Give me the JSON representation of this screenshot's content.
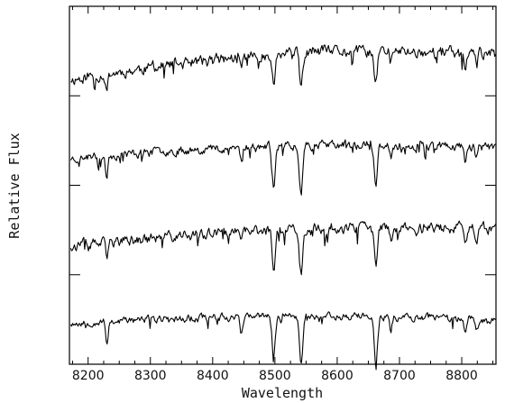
{
  "chart_data": {
    "type": "line",
    "title": "",
    "xlabel": "Wavelength",
    "ylabel": "Relative Flux",
    "xlim": [
      8170,
      8855
    ],
    "x_ticks": [
      8200,
      8300,
      8400,
      8500,
      8600,
      8700,
      8800
    ],
    "x_tick_labels": [
      "8200",
      "8300",
      "8400",
      "8500",
      "8600",
      "8700",
      "8800"
    ],
    "y_ticks_labeled": false,
    "offset_spectra": true,
    "grid": false,
    "legend": "none",
    "absorption_lines": [
      {
        "x": 8230,
        "depth": 0.45
      },
      {
        "x": 8446,
        "depth": 0.3
      },
      {
        "x": 8498,
        "depth": 0.85
      },
      {
        "x": 8542,
        "depth": 1.0
      },
      {
        "x": 8662,
        "depth": 0.95
      },
      {
        "x": 8686,
        "depth": 0.3
      },
      {
        "x": 8806,
        "depth": 0.35
      },
      {
        "x": 8824,
        "depth": 0.25
      }
    ],
    "series": [
      {
        "baseline": 0.795,
        "slope": 0.16,
        "bump": 0.035,
        "line_scale": 0.095,
        "noise": 0.018,
        "seed": 11
      },
      {
        "baseline": 0.575,
        "slope": 0.07,
        "bump": 0.02,
        "line_scale": 0.13,
        "noise": 0.014,
        "seed": 23
      },
      {
        "baseline": 0.33,
        "slope": 0.11,
        "bump": 0.02,
        "line_scale": 0.115,
        "noise": 0.017,
        "seed": 37
      },
      {
        "baseline": 0.115,
        "slope": 0.02,
        "bump": 0.015,
        "line_scale": 0.135,
        "noise": 0.012,
        "seed": 53
      }
    ]
  }
}
